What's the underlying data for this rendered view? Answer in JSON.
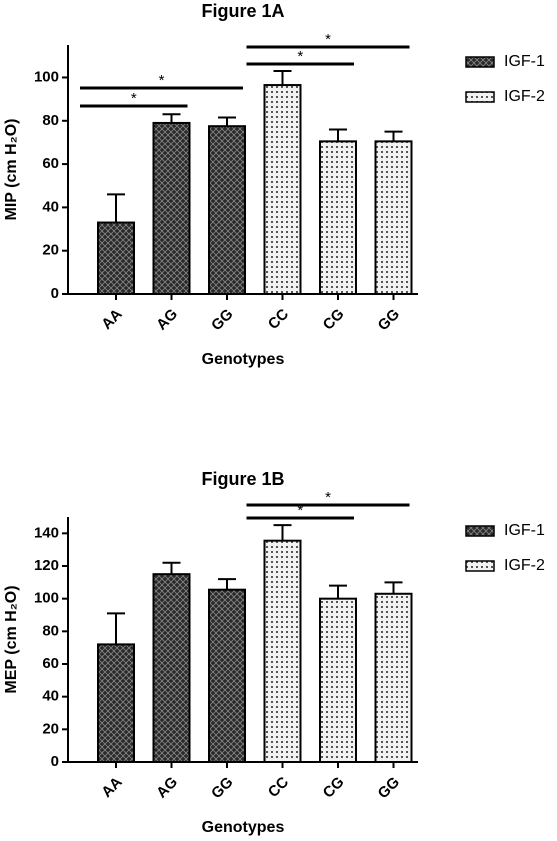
{
  "chart_data": [
    {
      "type": "bar",
      "title": "Figure 1A",
      "x_label": "Genotypes",
      "y_label": "MIP (cm H₂O)",
      "categories": [
        "AA",
        "AG",
        "GG",
        "CC",
        "CG",
        "GG"
      ],
      "series": [
        {
          "name": "IGF-1",
          "color": "#333333",
          "values": [
            33,
            79,
            77.5,
            null,
            null,
            null
          ],
          "errors": [
            13,
            4,
            4,
            null,
            null,
            null
          ]
        },
        {
          "name": "IGF-2",
          "color": "#e0e0e0",
          "values": [
            null,
            null,
            null,
            96.5,
            70.5,
            70.5
          ],
          "errors": [
            null,
            null,
            null,
            6.5,
            5.5,
            4.5
          ]
        }
      ],
      "ylim": [
        0,
        115
      ],
      "yticks": [
        0,
        20,
        40,
        60,
        80,
        100
      ],
      "annotations": [
        "*",
        "*",
        "*",
        "*"
      ]
    },
    {
      "type": "bar",
      "title": "Figure 1B",
      "x_label": "Genotypes",
      "y_label": "MEP (cm H₂O)",
      "categories": [
        "AA",
        "AG",
        "GG",
        "CC",
        "CG",
        "GG"
      ],
      "series": [
        {
          "name": "IGF-1",
          "color": "#333333",
          "values": [
            72,
            115,
            105.5,
            null,
            null,
            null
          ],
          "errors": [
            19,
            7,
            6.5,
            null,
            null,
            null
          ]
        },
        {
          "name": "IGF-2",
          "color": "#e0e0e0",
          "values": [
            null,
            null,
            null,
            135.5,
            100,
            103
          ],
          "errors": [
            null,
            null,
            null,
            9.5,
            8,
            7
          ]
        }
      ],
      "ylim": [
        0,
        150
      ],
      "yticks": [
        0,
        20,
        40,
        60,
        80,
        100,
        120,
        140
      ],
      "annotations": [
        "*",
        "*"
      ]
    }
  ]
}
